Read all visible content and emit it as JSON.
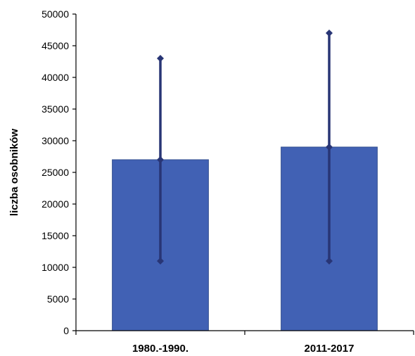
{
  "chart_data": {
    "type": "bar",
    "title": "",
    "xlabel": "",
    "ylabel": "liczba osobników",
    "categories": [
      "1980.-1990.",
      "2011-2017"
    ],
    "values": [
      27000,
      29000
    ],
    "error_low": [
      11000,
      11000
    ],
    "error_high": [
      43000,
      47000
    ],
    "ylim": [
      0,
      50000
    ],
    "yticks": [
      0,
      5000,
      10000,
      15000,
      20000,
      25000,
      30000,
      35000,
      40000,
      45000,
      50000
    ],
    "grid": false,
    "colors": {
      "bar": "#4161b4",
      "bar_edge": "#34508f",
      "error_bar": "#283575",
      "axis": "#000000"
    }
  }
}
